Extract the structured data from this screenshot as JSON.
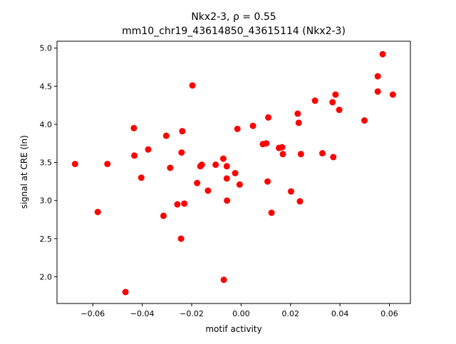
{
  "chart_data": {
    "type": "scatter",
    "title_line1": "Nkx2-3, ρ = 0.55",
    "title_line2": "mm10_chr19_43614850_43615114 (Nkx2-3)",
    "xlabel": "motif activity",
    "ylabel": "signal at CRE (ln)",
    "xlim": [
      -0.0745,
      0.0685
    ],
    "ylim": [
      1.65,
      5.09
    ],
    "xticks": [
      -0.06,
      -0.04,
      -0.02,
      0.0,
      0.02,
      0.04,
      0.06
    ],
    "xtick_labels": [
      "−0.06",
      "−0.04",
      "−0.02",
      "0.00",
      "0.02",
      "0.04",
      "0.06"
    ],
    "yticks": [
      2.0,
      2.5,
      3.0,
      3.5,
      4.0,
      4.5,
      5.0
    ],
    "ytick_labels": [
      "2.0",
      "2.5",
      "3.0",
      "3.5",
      "4.0",
      "4.5",
      "5.0"
    ],
    "grid": false,
    "marker_color": "#ff0000",
    "points": [
      {
        "x": -0.0672,
        "y": 3.48
      },
      {
        "x": -0.058,
        "y": 2.85
      },
      {
        "x": -0.0541,
        "y": 3.48
      },
      {
        "x": -0.0468,
        "y": 1.8
      },
      {
        "x": -0.0434,
        "y": 3.95
      },
      {
        "x": -0.0432,
        "y": 3.59
      },
      {
        "x": -0.0404,
        "y": 3.3
      },
      {
        "x": -0.0376,
        "y": 3.67
      },
      {
        "x": -0.0314,
        "y": 2.8
      },
      {
        "x": -0.0303,
        "y": 3.85
      },
      {
        "x": -0.0287,
        "y": 3.43
      },
      {
        "x": -0.0258,
        "y": 2.95
      },
      {
        "x": -0.0243,
        "y": 2.5
      },
      {
        "x": -0.0241,
        "y": 3.63
      },
      {
        "x": -0.0238,
        "y": 3.91
      },
      {
        "x": -0.023,
        "y": 2.96
      },
      {
        "x": -0.0197,
        "y": 4.51
      },
      {
        "x": -0.0178,
        "y": 3.23
      },
      {
        "x": -0.0165,
        "y": 3.45
      },
      {
        "x": -0.0159,
        "y": 3.47
      },
      {
        "x": -0.0134,
        "y": 3.13
      },
      {
        "x": -0.0103,
        "y": 3.47
      },
      {
        "x": -0.0072,
        "y": 3.55
      },
      {
        "x": -0.007,
        "y": 1.96
      },
      {
        "x": -0.0058,
        "y": 3.45
      },
      {
        "x": -0.0058,
        "y": 3.29
      },
      {
        "x": -0.0057,
        "y": 3.0
      },
      {
        "x": -0.0024,
        "y": 3.36
      },
      {
        "x": -0.0015,
        "y": 3.94
      },
      {
        "x": -0.0006,
        "y": 3.21
      },
      {
        "x": 0.0048,
        "y": 3.98
      },
      {
        "x": 0.0088,
        "y": 3.74
      },
      {
        "x": 0.0102,
        "y": 3.75
      },
      {
        "x": 0.0107,
        "y": 3.25
      },
      {
        "x": 0.011,
        "y": 4.09
      },
      {
        "x": 0.0123,
        "y": 2.84
      },
      {
        "x": 0.0153,
        "y": 3.69
      },
      {
        "x": 0.0166,
        "y": 3.7
      },
      {
        "x": 0.0169,
        "y": 3.61
      },
      {
        "x": 0.0202,
        "y": 3.12
      },
      {
        "x": 0.0229,
        "y": 4.14
      },
      {
        "x": 0.0233,
        "y": 4.02
      },
      {
        "x": 0.0238,
        "y": 2.99
      },
      {
        "x": 0.0242,
        "y": 3.61
      },
      {
        "x": 0.0299,
        "y": 4.31
      },
      {
        "x": 0.0329,
        "y": 3.62
      },
      {
        "x": 0.037,
        "y": 4.29
      },
      {
        "x": 0.0373,
        "y": 3.57
      },
      {
        "x": 0.0382,
        "y": 4.39
      },
      {
        "x": 0.0397,
        "y": 4.19
      },
      {
        "x": 0.0499,
        "y": 4.05
      },
      {
        "x": 0.0553,
        "y": 4.63
      },
      {
        "x": 0.0553,
        "y": 4.43
      },
      {
        "x": 0.0573,
        "y": 4.92
      },
      {
        "x": 0.0614,
        "y": 4.39
      }
    ]
  }
}
